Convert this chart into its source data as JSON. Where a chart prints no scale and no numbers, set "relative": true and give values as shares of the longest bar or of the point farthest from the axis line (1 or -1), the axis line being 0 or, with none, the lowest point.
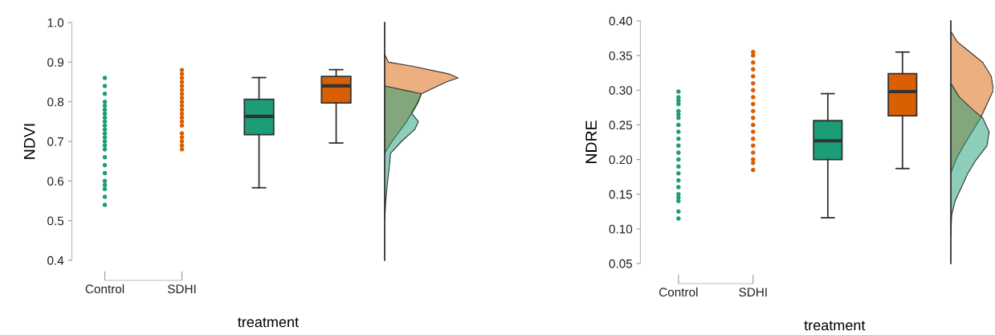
{
  "chart_data": [
    {
      "type": "box",
      "xlabel": "treatment",
      "ylabel": "NDVI",
      "categories": [
        "Control",
        "SDHI",
        null,
        null
      ],
      "ylim": [
        0.4,
        1.0
      ],
      "yticks": [
        0.4,
        0.5,
        0.6,
        0.7,
        0.8,
        0.9,
        {
          "value": 1.0,
          "label": "1.0"
        }
      ],
      "grid": false,
      "marker": "circle",
      "colors": [
        null,
        null,
        "#1b9e77",
        "#d95f02"
      ],
      "boxes": [
        null,
        null,
        {
          "low": 0.583,
          "q1": 0.717,
          "median": 0.763,
          "q3": 0.806,
          "high": 0.861
        },
        {
          "low": 0.696,
          "q1": 0.797,
          "median": 0.84,
          "q3": 0.864,
          "high": 0.881
        }
      ],
      "series": [
        {
          "type": "scatter",
          "color": "#1b9e77",
          "x": [
            "Control",
            "Control",
            "Control",
            "Control",
            "Control",
            "Control",
            "Control",
            "Control",
            "Control",
            "Control",
            "Control",
            "Control",
            "Control",
            "Control",
            "Control",
            "Control",
            "Control",
            "Control",
            "Control",
            "Control",
            "Control",
            "Control",
            "Control",
            "Control"
          ],
          "values": [
            0.54,
            0.56,
            0.58,
            0.59,
            0.6,
            0.62,
            0.64,
            0.66,
            0.68,
            0.69,
            0.7,
            0.71,
            0.72,
            0.73,
            0.74,
            0.75,
            0.76,
            0.77,
            0.78,
            0.79,
            0.8,
            0.82,
            0.84,
            0.86
          ]
        },
        {
          "type": "scatter",
          "color": "#d95f02",
          "x": [
            "SDHI",
            "SDHI",
            "SDHI",
            "SDHI",
            "SDHI",
            "SDHI",
            "SDHI",
            "SDHI",
            "SDHI",
            "SDHI",
            "SDHI",
            "SDHI",
            "SDHI",
            "SDHI",
            "SDHI",
            "SDHI",
            "SDHI",
            "SDHI",
            "SDHI",
            "SDHI"
          ],
          "values": [
            0.68,
            0.69,
            0.7,
            0.71,
            0.72,
            0.74,
            0.75,
            0.76,
            0.77,
            0.78,
            0.79,
            0.8,
            0.81,
            0.82,
            0.83,
            0.84,
            0.85,
            0.86,
            0.87,
            0.88
          ]
        }
      ]
    },
    {
      "type": "area",
      "orientation": "horizontal",
      "relative": true,
      "ylim": [
        0.4,
        1.0
      ],
      "tick_labels": false,
      "series": [
        {
          "color": "#d95f02",
          "x": [
            0.92,
            0.9,
            0.89,
            0.87,
            0.86,
            0.85,
            0.82,
            0.8,
            0.75,
            0.7,
            0.67
          ],
          "values": [
            0,
            0.05,
            0.37,
            0.88,
            1.0,
            0.84,
            0.5,
            0.45,
            0.3,
            0.1,
            0
          ]
        },
        {
          "color": "#1b9e77",
          "x": [
            0.84,
            0.82,
            0.8,
            0.77,
            0.75,
            0.73,
            0.7,
            0.67,
            0.63,
            0.6,
            0.55,
            0.5
          ],
          "values": [
            0,
            0.5,
            0.46,
            0.37,
            0.46,
            0.41,
            0.23,
            0.08,
            0.06,
            0.04,
            0.015,
            0
          ]
        }
      ]
    },
    {
      "type": "box",
      "xlabel": "treatment",
      "ylabel": "NDRE",
      "categories": [
        "Control",
        "SDHI",
        null,
        null
      ],
      "ylim": [
        0.05,
        0.4
      ],
      "yticks": [
        {
          "value": 0.05,
          "label": "0.05"
        },
        {
          "value": 0.1,
          "label": "0.10"
        },
        {
          "value": 0.15,
          "label": "0.15"
        },
        {
          "value": 0.2,
          "label": "0.20"
        },
        {
          "value": 0.25,
          "label": "0.25"
        },
        {
          "value": 0.3,
          "label": "0.30"
        },
        {
          "value": 0.35,
          "label": "0.35"
        },
        {
          "value": 0.4,
          "label": "0.40"
        }
      ],
      "grid": false,
      "marker": "circle",
      "colors": [
        null,
        null,
        "#1b9e77",
        "#d95f02"
      ],
      "boxes": [
        null,
        null,
        {
          "low": 0.116,
          "q1": 0.2,
          "median": 0.227,
          "q3": 0.256,
          "high": 0.295
        },
        {
          "low": 0.187,
          "q1": 0.263,
          "median": 0.298,
          "q3": 0.324,
          "high": 0.355
        }
      ],
      "series": [
        {
          "type": "scatter",
          "color": "#1b9e77",
          "x": [
            "Control",
            "Control",
            "Control",
            "Control",
            "Control",
            "Control",
            "Control",
            "Control",
            "Control",
            "Control",
            "Control",
            "Control",
            "Control",
            "Control",
            "Control",
            "Control",
            "Control",
            "Control",
            "Control",
            "Control",
            "Control",
            "Control"
          ],
          "values": [
            0.115,
            0.125,
            0.14,
            0.145,
            0.15,
            0.16,
            0.17,
            0.18,
            0.19,
            0.2,
            0.21,
            0.22,
            0.23,
            0.24,
            0.25,
            0.26,
            0.265,
            0.27,
            0.28,
            0.285,
            0.29,
            0.298
          ]
        },
        {
          "type": "scatter",
          "color": "#d95f02",
          "x": [
            "SDHI",
            "SDHI",
            "SDHI",
            "SDHI",
            "SDHI",
            "SDHI",
            "SDHI",
            "SDHI",
            "SDHI",
            "SDHI",
            "SDHI",
            "SDHI",
            "SDHI",
            "SDHI",
            "SDHI",
            "SDHI",
            "SDHI",
            "SDHI",
            "SDHI"
          ],
          "values": [
            0.185,
            0.195,
            0.2,
            0.21,
            0.22,
            0.23,
            0.24,
            0.25,
            0.26,
            0.27,
            0.28,
            0.29,
            0.3,
            0.31,
            0.32,
            0.33,
            0.34,
            0.35,
            0.355
          ]
        }
      ]
    },
    {
      "type": "area",
      "orientation": "horizontal",
      "relative": true,
      "ylim": [
        0.05,
        0.4
      ],
      "tick_labels": false,
      "series": [
        {
          "color": "#d95f02",
          "x": [
            0.385,
            0.37,
            0.36,
            0.34,
            0.32,
            0.3,
            0.28,
            0.26,
            0.24,
            0.22,
            0.2,
            0.18
          ],
          "values": [
            0,
            0.15,
            0.35,
            0.75,
            0.95,
            1.0,
            0.85,
            0.7,
            0.5,
            0.3,
            0.12,
            0
          ]
        },
        {
          "color": "#1b9e77",
          "x": [
            0.31,
            0.29,
            0.27,
            0.26,
            0.24,
            0.22,
            0.2,
            0.18,
            0.16,
            0.14,
            0.12,
            0.09
          ],
          "values": [
            0,
            0.2,
            0.55,
            0.75,
            0.9,
            0.85,
            0.6,
            0.4,
            0.25,
            0.1,
            0.02,
            0
          ]
        }
      ]
    }
  ]
}
